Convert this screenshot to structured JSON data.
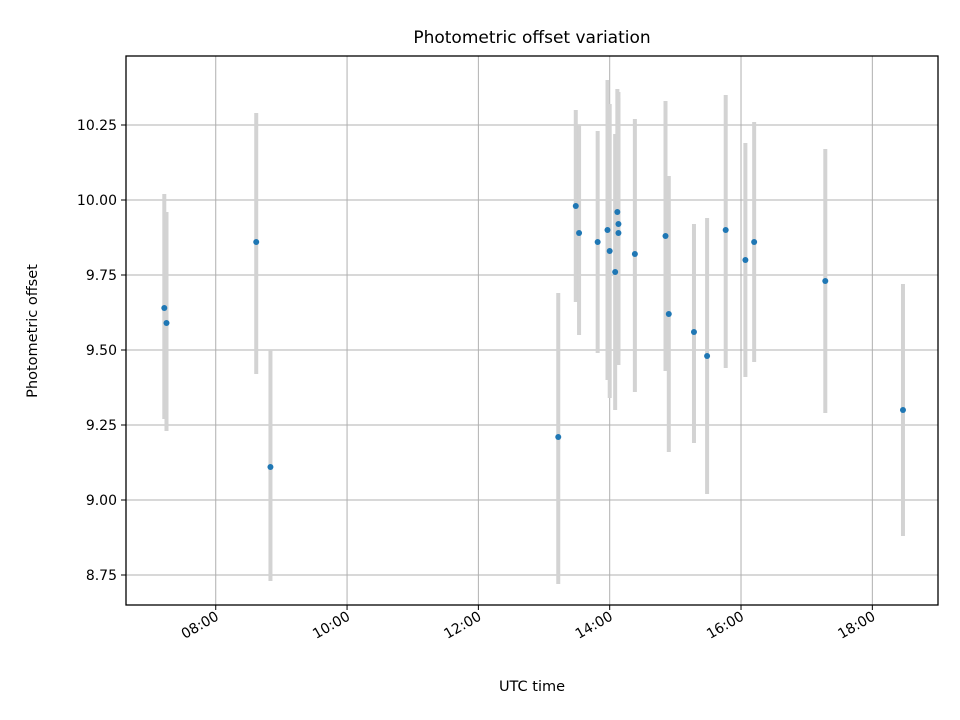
{
  "chart_data": {
    "type": "scatter",
    "title": "Photometric offset variation",
    "xlabel": "UTC time",
    "ylabel": "Photometric offset",
    "x_unit": "HH:MM",
    "xlim": [
      "06:38",
      "19:00"
    ],
    "ylim": [
      8.65,
      10.48
    ],
    "xticks": [
      "08:00",
      "10:00",
      "12:00",
      "14:00",
      "16:00",
      "18:00"
    ],
    "yticks": [
      8.75,
      9.0,
      9.25,
      9.5,
      9.75,
      10.0,
      10.25
    ],
    "ytick_labels": [
      "8.75",
      "9.00",
      "9.25",
      "9.50",
      "9.75",
      "10.00",
      "10.25"
    ],
    "grid": true,
    "error_bars": true,
    "colors": {
      "marker": "#1f77b4",
      "errorbar": "#d3d3d3",
      "grid": "#b0b0b0"
    },
    "points": [
      {
        "x": "07:13",
        "y": 9.64,
        "yerr_low": 9.27,
        "yerr_high": 10.02
      },
      {
        "x": "07:15",
        "y": 9.59,
        "yerr_low": 9.23,
        "yerr_high": 9.96
      },
      {
        "x": "08:37",
        "y": 9.86,
        "yerr_low": 9.42,
        "yerr_high": 10.29
      },
      {
        "x": "08:50",
        "y": 9.11,
        "yerr_low": 8.73,
        "yerr_high": 9.5
      },
      {
        "x": "13:13",
        "y": 9.21,
        "yerr_low": 8.72,
        "yerr_high": 9.69
      },
      {
        "x": "13:29",
        "y": 9.98,
        "yerr_low": 9.66,
        "yerr_high": 10.3
      },
      {
        "x": "13:32",
        "y": 9.89,
        "yerr_low": 9.55,
        "yerr_high": 10.25
      },
      {
        "x": "13:49",
        "y": 9.86,
        "yerr_low": 9.49,
        "yerr_high": 10.23
      },
      {
        "x": "13:58",
        "y": 9.9,
        "yerr_low": 9.4,
        "yerr_high": 10.4
      },
      {
        "x": "14:00",
        "y": 9.83,
        "yerr_low": 9.34,
        "yerr_high": 10.32
      },
      {
        "x": "14:05",
        "y": 9.76,
        "yerr_low": 9.3,
        "yerr_high": 10.22
      },
      {
        "x": "14:07",
        "y": 9.96,
        "yerr_low": 9.55,
        "yerr_high": 10.37
      },
      {
        "x": "14:08",
        "y": 9.92,
        "yerr_low": 9.48,
        "yerr_high": 10.36
      },
      {
        "x": "14:08",
        "y": 9.89,
        "yerr_low": 9.45,
        "yerr_high": 10.34
      },
      {
        "x": "14:23",
        "y": 9.82,
        "yerr_low": 9.36,
        "yerr_high": 10.27
      },
      {
        "x": "14:51",
        "y": 9.88,
        "yerr_low": 9.43,
        "yerr_high": 10.33
      },
      {
        "x": "14:54",
        "y": 9.62,
        "yerr_low": 9.16,
        "yerr_high": 10.08
      },
      {
        "x": "15:17",
        "y": 9.56,
        "yerr_low": 9.19,
        "yerr_high": 9.92
      },
      {
        "x": "15:29",
        "y": 9.48,
        "yerr_low": 9.02,
        "yerr_high": 9.94
      },
      {
        "x": "15:46",
        "y": 9.9,
        "yerr_low": 9.44,
        "yerr_high": 10.35
      },
      {
        "x": "16:04",
        "y": 9.8,
        "yerr_low": 9.41,
        "yerr_high": 10.19
      },
      {
        "x": "16:12",
        "y": 9.86,
        "yerr_low": 9.46,
        "yerr_high": 10.26
      },
      {
        "x": "17:17",
        "y": 9.73,
        "yerr_low": 9.29,
        "yerr_high": 10.17
      },
      {
        "x": "18:28",
        "y": 9.3,
        "yerr_low": 8.88,
        "yerr_high": 9.72
      }
    ]
  }
}
